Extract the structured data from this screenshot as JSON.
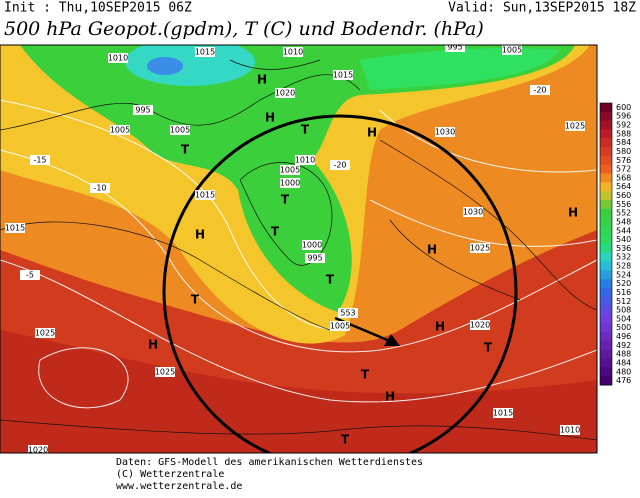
{
  "header": {
    "init": "Init : Thu,10SEP2015 06Z",
    "valid": "Valid: Sun,13SEP2015 18Z",
    "title": "500 hPa Geopot.(gpdm), T (C) und Bodendr. (hPa)"
  },
  "colorbar": {
    "ticks": [
      600,
      596,
      592,
      588,
      584,
      580,
      576,
      572,
      568,
      564,
      560,
      556,
      552,
      548,
      544,
      540,
      536,
      532,
      528,
      524,
      520,
      516,
      512,
      508,
      504,
      500,
      496,
      492,
      488,
      484,
      480,
      476
    ]
  },
  "map_labels": [
    "1010",
    "1015",
    "1010",
    "995",
    "1005",
    "1015",
    "1020",
    "995",
    "1005",
    "1005",
    "H",
    "T",
    "T",
    "H",
    "1010",
    "1005",
    "1000",
    "T",
    "T",
    "1000",
    "995",
    "T",
    "H",
    "T",
    "1015",
    "1015",
    "1025",
    "H",
    "1025",
    "1020",
    "H",
    "1030",
    "1025",
    "1030",
    "H",
    "1025",
    "H",
    "1020",
    "H",
    "T",
    "H",
    "T",
    "T",
    "1015",
    "1010",
    "1005",
    "553",
    "-15",
    "-10",
    "-5",
    "-20",
    "-20"
  ],
  "footer": {
    "line1": "Daten: GFS-Modell des amerikanischen Wetterdienstes",
    "line2": "(C) Wetterzentrale",
    "line3": "www.wetterzentrale.de"
  }
}
